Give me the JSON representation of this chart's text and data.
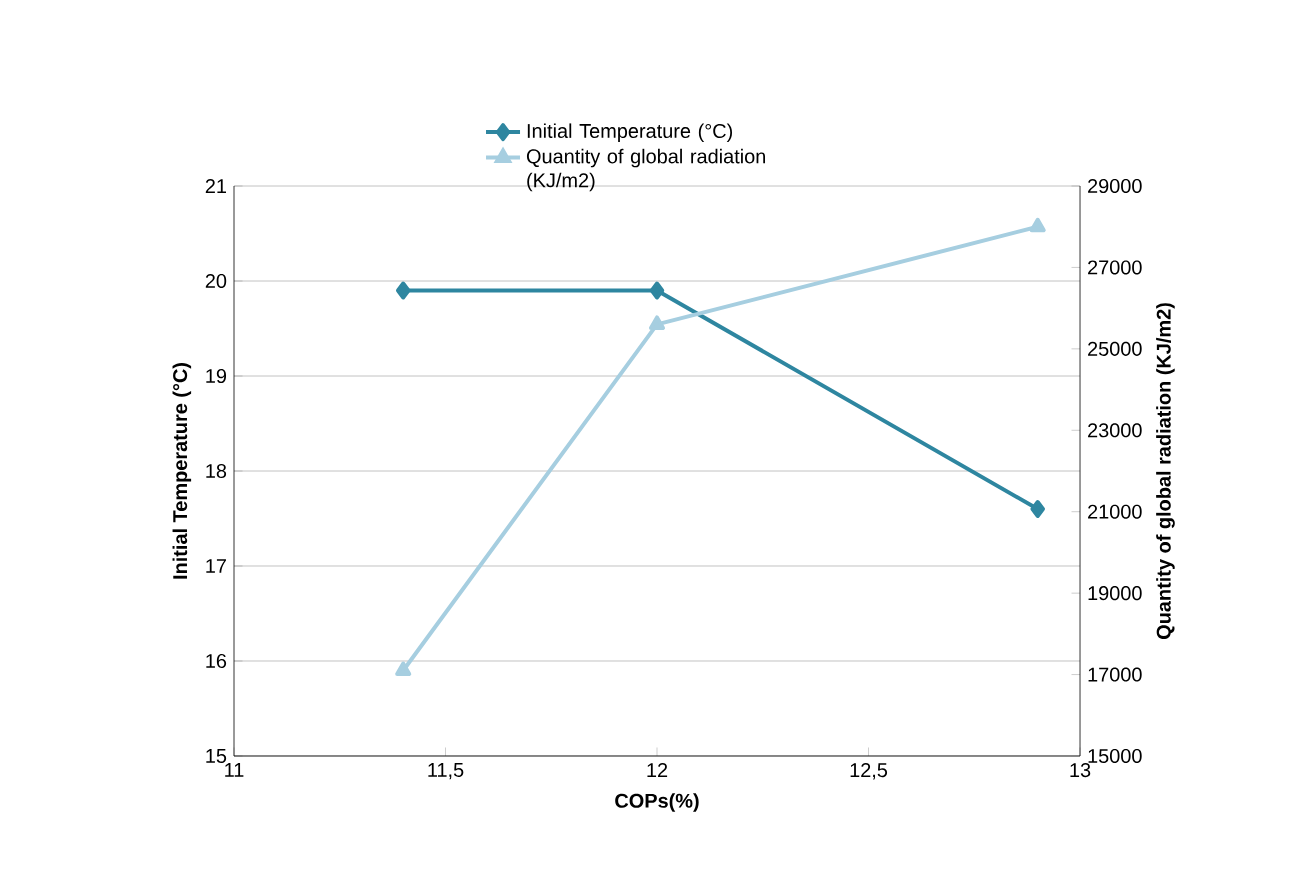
{
  "chart_data": {
    "type": "line",
    "xlabel": "COPs(%)",
    "ylabel": "Initial Temperature (°C)",
    "y2label": "Quantity of global radiation (KJ/m2)",
    "xlim": [
      11,
      13
    ],
    "xticks": [
      11,
      {
        "value": 11.5,
        "label": "11,5"
      },
      12,
      {
        "value": 12.5,
        "label": "12,5"
      },
      13
    ],
    "ylim": [
      15,
      21
    ],
    "yticks": [
      15,
      16,
      17,
      18,
      19,
      20,
      21
    ],
    "y2lim": [
      15000,
      29000
    ],
    "y2ticks": [
      15000,
      17000,
      19000,
      21000,
      23000,
      25000,
      27000,
      29000
    ],
    "grid": "y",
    "legend": "top",
    "series": [
      {
        "name": "Initial Temperature (°C)",
        "color": "#2e86a0",
        "x": [
          11.4,
          12,
          12.9
        ],
        "values": [
          19.9,
          19.9,
          17.6
        ],
        "marker": "diamond"
      },
      {
        "name": "Quantity of global radiation (KJ/m2)",
        "color": "#a6cee0",
        "x": [
          11.4,
          12,
          12.9
        ],
        "values": [
          17100,
          25600,
          28000
        ],
        "marker": "triangle",
        "axis": "y2"
      }
    ]
  }
}
